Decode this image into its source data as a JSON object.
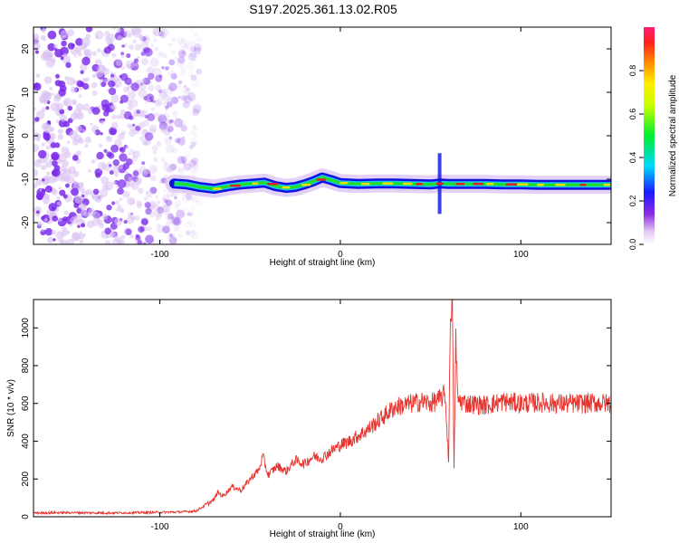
{
  "title": "S197.2025.361.13.02.R05",
  "colors": {
    "axis": "#000000",
    "snr_line": "#e8342e",
    "background": "#ffffff",
    "noise_light": "#d9c2f2",
    "noise_dark": "#7b2bea",
    "band_blue": "#1010e0",
    "band_green": "#22dd22",
    "band_red": "#e0202a"
  },
  "chart_data": [
    {
      "type": "heatmap",
      "title": "S197.2025.361.13.02.R05",
      "xlabel": "Height of straight line (km)",
      "ylabel": "Frequency (Hz)",
      "xlim": [
        -170,
        150
      ],
      "ylim": [
        -25,
        25
      ],
      "xticks": [
        -100,
        0,
        100
      ],
      "xtick_labels": [
        "-100",
        "0",
        "100"
      ],
      "yticks": [
        -20,
        -10,
        0,
        10,
        20
      ],
      "ytick_labels": [
        "-20",
        "-10",
        "0",
        "10",
        "20"
      ],
      "noise_x_range": [
        -170,
        -78
      ],
      "signal_track": {
        "x": [
          -92,
          -85,
          -78,
          -70,
          -62,
          -55,
          -48,
          -42,
          -36,
          -30,
          -25,
          -20,
          -15,
          -10,
          -5,
          0,
          10,
          20,
          30,
          40,
          50,
          55,
          60,
          70,
          80,
          90,
          100,
          110,
          120,
          130,
          140,
          150
        ],
        "frequency": [
          -11,
          -11.2,
          -11.8,
          -12.2,
          -11.6,
          -11.2,
          -11.0,
          -10.8,
          -11.6,
          -12.0,
          -11.8,
          -11.2,
          -10.5,
          -9.6,
          -10.2,
          -10.9,
          -11.1,
          -11.0,
          -11.0,
          -11.1,
          -11.2,
          -11.0,
          -11.1,
          -11.1,
          -11.1,
          -11.2,
          -11.2,
          -11.3,
          -11.3,
          -11.3,
          -11.3,
          -11.3
        ]
      },
      "colorbar": {
        "label": "Normalized spectral amplitude",
        "range": [
          0,
          1
        ],
        "ticks": [
          0.0,
          0.2,
          0.4,
          0.6,
          0.8
        ],
        "tick_labels": [
          "0.0",
          "0.2",
          "0.4",
          "0.6",
          "0.8"
        ]
      }
    },
    {
      "type": "line",
      "title": "",
      "xlabel": "Height of straight line (km)",
      "ylabel": "SNR (10 * v/v)",
      "xlim": [
        -170,
        150
      ],
      "ylim": [
        0,
        1150
      ],
      "xticks": [
        -100,
        0,
        100
      ],
      "xtick_labels": [
        "-100",
        "0",
        "100"
      ],
      "yticks": [
        0,
        200,
        400,
        600,
        800,
        1000
      ],
      "ytick_labels": [
        "0",
        "200",
        "400",
        "600",
        "800",
        "1000"
      ],
      "series": [
        {
          "name": "SNR",
          "x": [
            -170,
            -150,
            -130,
            -110,
            -90,
            -80,
            -75,
            -70,
            -68,
            -65,
            -60,
            -55,
            -50,
            -45,
            -43,
            -40,
            -35,
            -30,
            -25,
            -20,
            -15,
            -10,
            -5,
            0,
            5,
            10,
            15,
            20,
            25,
            30,
            35,
            40,
            45,
            50,
            55,
            58,
            60,
            61,
            62,
            63,
            64,
            65,
            70,
            80,
            90,
            100,
            110,
            120,
            130,
            140,
            150
          ],
          "values": [
            20,
            22,
            20,
            22,
            25,
            30,
            60,
            90,
            130,
            110,
            160,
            140,
            200,
            250,
            320,
            220,
            270,
            240,
            300,
            280,
            320,
            310,
            350,
            380,
            400,
            430,
            460,
            500,
            540,
            580,
            590,
            600,
            610,
            600,
            620,
            650,
            300,
            1100,
            1150,
            250,
            950,
            620,
            600,
            590,
            610,
            600,
            605,
            600,
            598,
            603,
            600
          ]
        }
      ]
    }
  ]
}
